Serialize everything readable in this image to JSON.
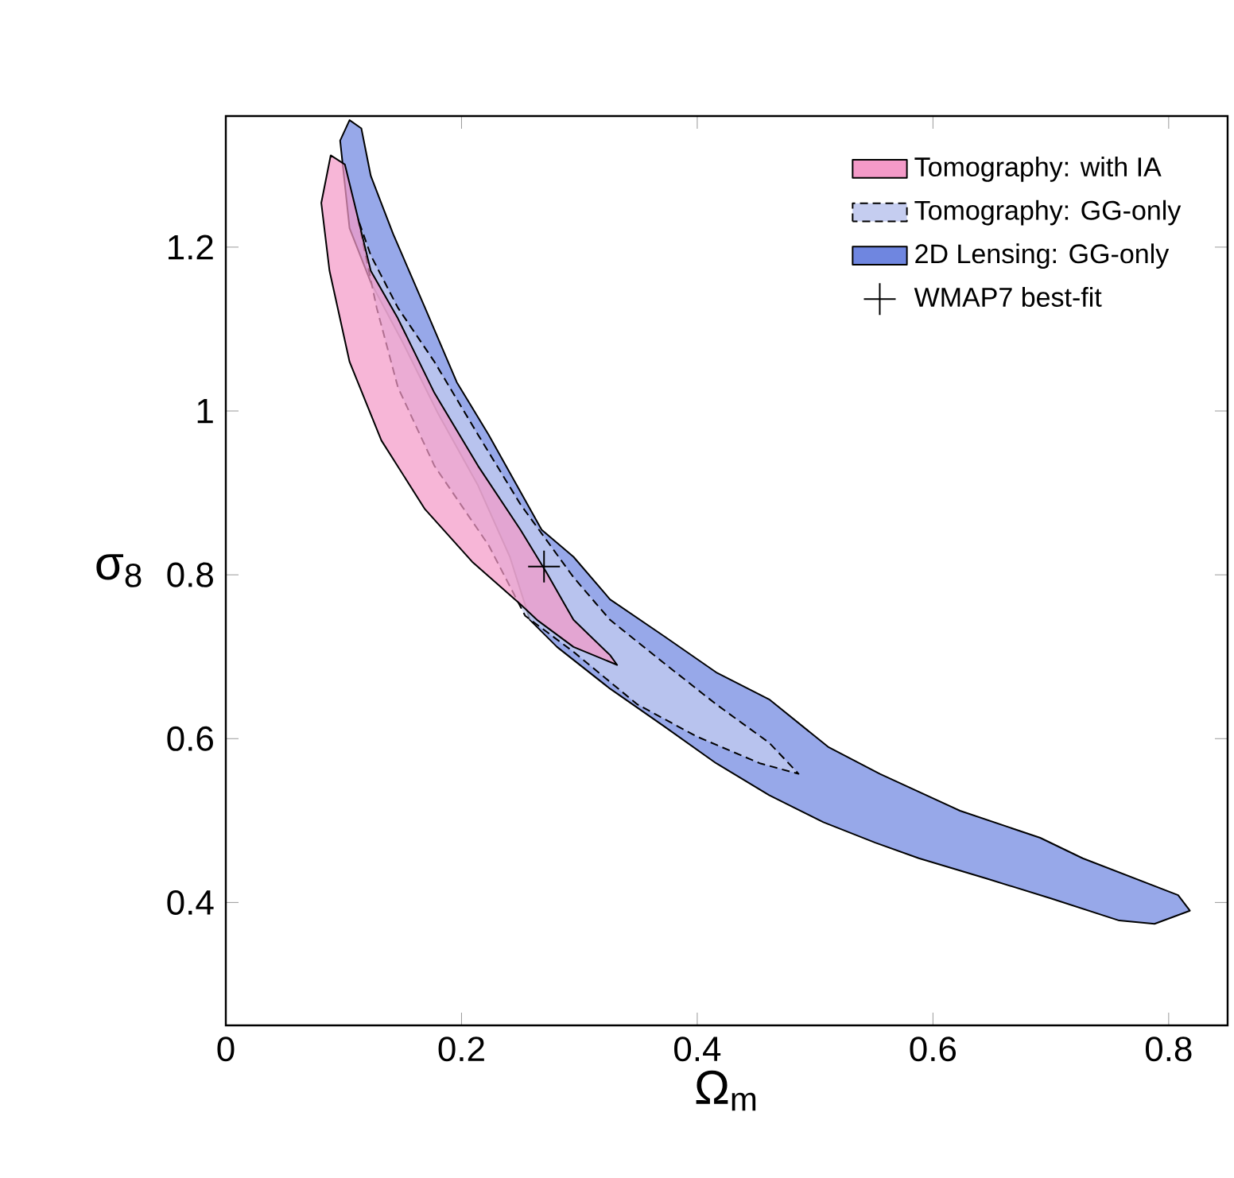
{
  "chart_data": {
    "type": "area",
    "xlabel": "Ω$_{m}$",
    "ylabel": "σ$_{8}$",
    "xlim": [
      0,
      0.85
    ],
    "ylim": [
      0.25,
      1.36
    ],
    "xticks": [
      0,
      0.2,
      0.4,
      0.6,
      0.8
    ],
    "yticks": [
      0.4,
      0.6,
      0.8,
      1,
      1.2
    ],
    "legend": "top right",
    "grid": false,
    "series": [
      {
        "name": "Tomography: with IA",
        "color": "#f49ac8",
        "line_style": "solid",
        "x": [
          0.089,
          0.081,
          0.088,
          0.105,
          0.132,
          0.169,
          0.209,
          0.25,
          0.264,
          0.295,
          0.332,
          0.326,
          0.295,
          0.272,
          0.25,
          0.214,
          0.177,
          0.146,
          0.123,
          0.109,
          0.101
        ],
        "values": [
          1.312,
          1.254,
          1.171,
          1.06,
          0.964,
          0.88,
          0.816,
          0.764,
          0.745,
          0.712,
          0.69,
          0.702,
          0.745,
          0.803,
          0.855,
          0.933,
          1.022,
          1.113,
          1.171,
          1.254,
          1.301
        ]
      },
      {
        "name": "Tomography: GG-only",
        "color": "#c5cdf0",
        "line_style": "dashed",
        "x": [
          0.112,
          0.128,
          0.146,
          0.177,
          0.223,
          0.254,
          0.295,
          0.349,
          0.399,
          0.453,
          0.486,
          0.461,
          0.416,
          0.372,
          0.326,
          0.295,
          0.25,
          0.214,
          0.177,
          0.146,
          0.123
        ],
        "values": [
          1.235,
          1.126,
          1.029,
          0.933,
          0.836,
          0.75,
          0.706,
          0.642,
          0.603,
          0.57,
          0.557,
          0.595,
          0.642,
          0.692,
          0.745,
          0.797,
          0.886,
          0.971,
          1.06,
          1.126,
          1.19
        ]
      },
      {
        "name": "2D Lensing:  GG-only",
        "color": "#6f86e0",
        "line_style": "solid",
        "x": [
          0.105,
          0.097,
          0.105,
          0.123,
          0.15,
          0.18,
          0.214,
          0.241,
          0.258,
          0.281,
          0.326,
          0.372,
          0.416,
          0.461,
          0.507,
          0.551,
          0.588,
          0.646,
          0.7,
          0.758,
          0.788,
          0.818,
          0.808,
          0.727,
          0.691,
          0.623,
          0.555,
          0.511,
          0.461,
          0.416,
          0.372,
          0.326,
          0.295,
          0.268,
          0.223,
          0.196,
          0.169,
          0.142,
          0.123,
          0.115
        ],
        "values": [
          1.355,
          1.33,
          1.223,
          1.157,
          1.084,
          0.997,
          0.909,
          0.822,
          0.745,
          0.712,
          0.661,
          0.615,
          0.57,
          0.531,
          0.498,
          0.473,
          0.454,
          0.429,
          0.405,
          0.378,
          0.374,
          0.39,
          0.409,
          0.454,
          0.479,
          0.512,
          0.557,
          0.59,
          0.648,
          0.681,
          0.725,
          0.77,
          0.822,
          0.855,
          0.971,
          1.035,
          1.126,
          1.216,
          1.287,
          1.345
        ]
      },
      {
        "name": "WMAP7 best-fit",
        "type": "scatter",
        "marker": "cross",
        "color": "#000000",
        "x": [
          0.27
        ],
        "values": [
          0.81
        ]
      }
    ]
  }
}
